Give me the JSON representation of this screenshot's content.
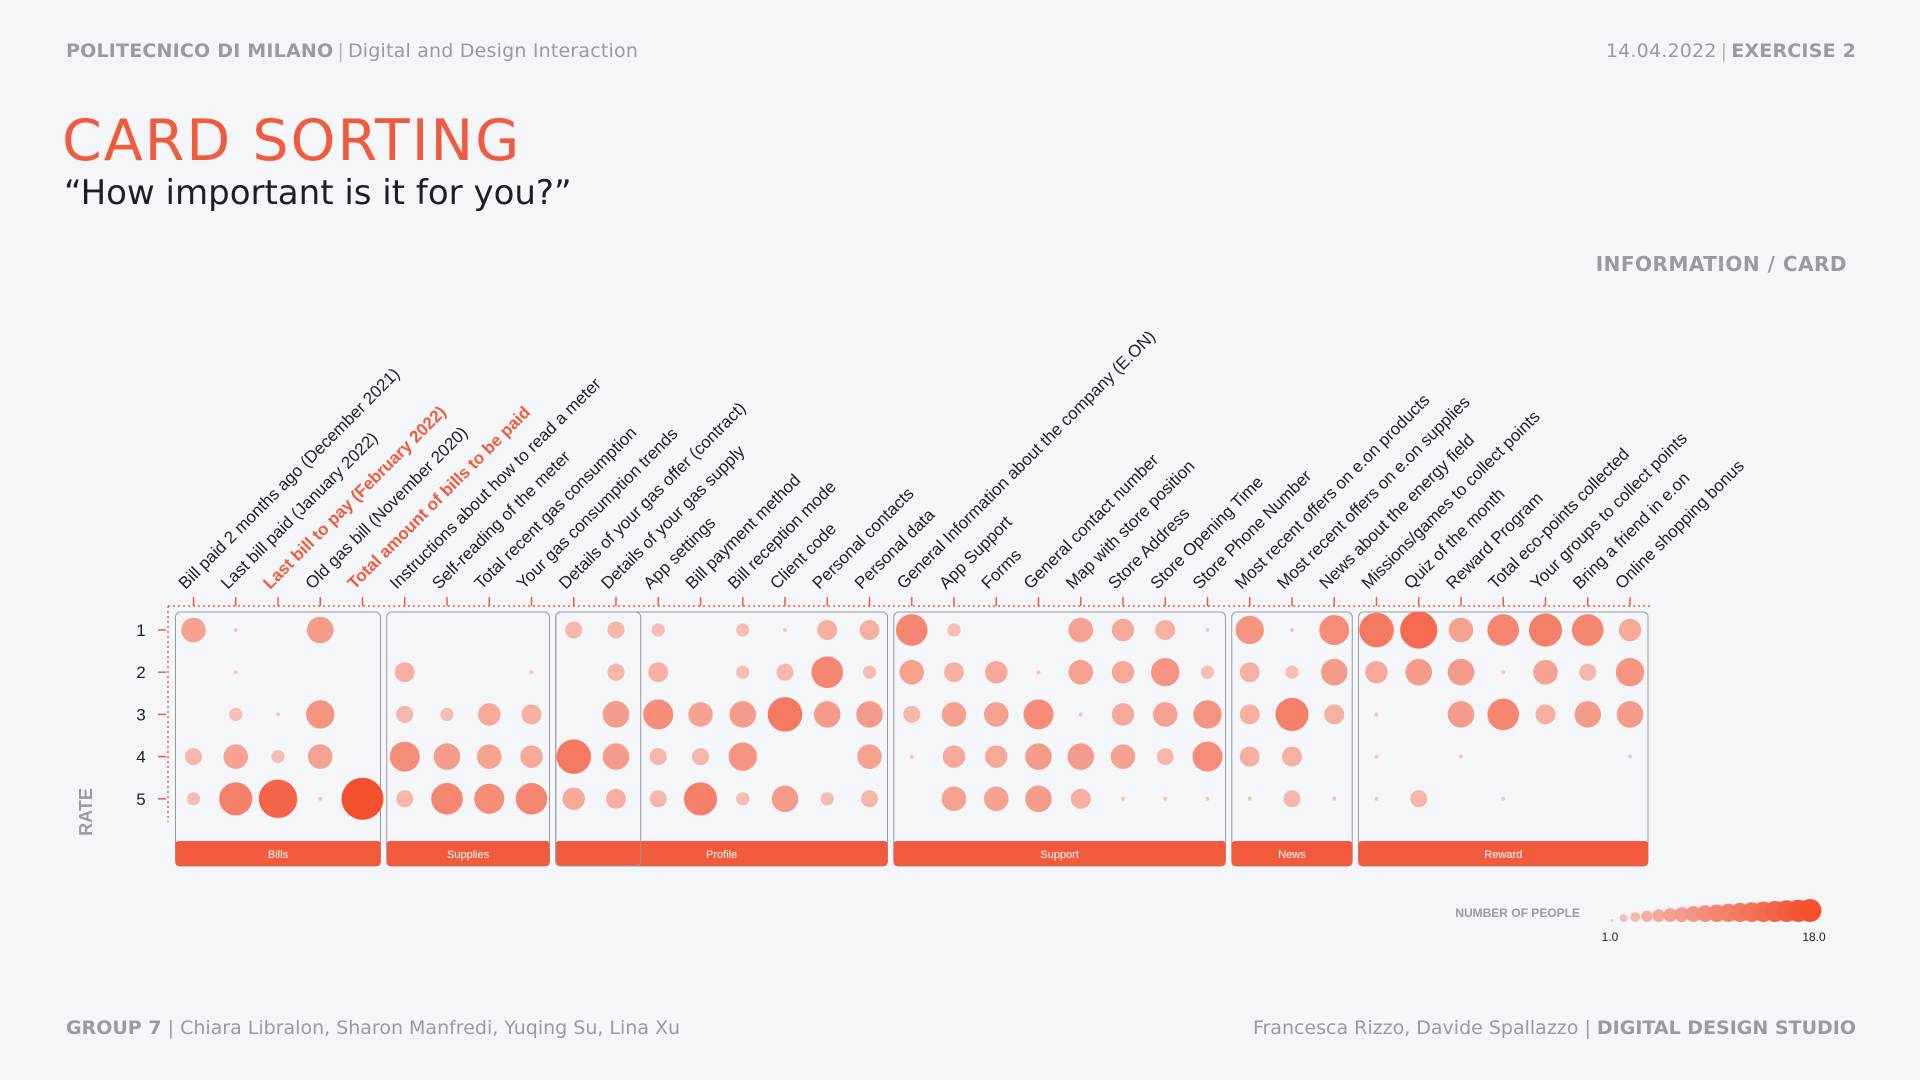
{
  "header": {
    "school": "POLITECNICO DI MILANO",
    "course": "Digital and Design Interaction",
    "date": "14.04.2022",
    "exercise": "EXERCISE 2"
  },
  "title": "CARD SORTING",
  "subtitle": "“How important is it for you?”",
  "info_card_label": "INFORMATION / CARD",
  "footer": {
    "group": "GROUP 7",
    "members": "Chiara Libralon, Sharon Manfredi, Yuqing Su, Lina Xu",
    "teachers": "Francesca Rizzo, Davide Spallazzo",
    "studio": "DIGITAL DESIGN STUDIO"
  },
  "colors": {
    "accent": "#f25a3c",
    "highlight_text": "#f25a3c",
    "bubble_light": "#f7d8d2",
    "bubble_dark": "#f35030",
    "muted": "#9a9aa2"
  },
  "chart_data": {
    "type": "scatter",
    "subtype": "bubble-matrix",
    "y_axis": {
      "label": "RATE",
      "ticks": [
        "1",
        "2",
        "3",
        "4",
        "5"
      ]
    },
    "cards": [
      "Bill paid 2 months ago (December 2021)",
      "Last bill paid (January 2022)",
      "Last bill to pay (February 2022)",
      "Old gas bill (November 2020)",
      "Total amount of bills to be paid",
      "Instructions about how to read a meter",
      "Self-reading of the meter",
      "Total recent gas consumption",
      "Your gas consumption trends",
      "Details of your gas offer (contract)",
      "Details of your gas supply",
      "App settings",
      "Bill payment method",
      "Bill reception mode",
      "Client code",
      "Personal contacts",
      "Personal data",
      "General Information about the company (E.ON)",
      "App Support",
      "Forms",
      "General contact number",
      "Map with store position",
      "Store Address",
      "Store Opening Time",
      "Store Phone Number",
      "Most recent offers on e.on products",
      "Most recent offers on e.on supplies",
      "News about the energy field",
      "Missions/games to collect points",
      "Quiz of the month",
      "Reward Program",
      "Total eco-points collected",
      "Your groups to collect points",
      "Bring a friend in e.on",
      "Online shopping bonus"
    ],
    "highlighted_cards": [
      2,
      4
    ],
    "groups": [
      {
        "name": "Bills",
        "start": 0,
        "end": 4
      },
      {
        "name": "Supplies",
        "start": 5,
        "end": 8
      },
      {
        "name": "Profile",
        "start": 9,
        "end": 16
      },
      {
        "name": "Support",
        "start": 17,
        "end": 24
      },
      {
        "name": "News",
        "start": 25,
        "end": 27
      },
      {
        "name": "Reward",
        "start": 28,
        "end": 34
      }
    ],
    "counts": [
      [
        6,
        0,
        0,
        3,
        2
      ],
      [
        1,
        1,
        2,
        6,
        11
      ],
      [
        0,
        0,
        1,
        2,
        15
      ],
      [
        7,
        0,
        8,
        6,
        1
      ],
      [
        0,
        0,
        0,
        0,
        18
      ],
      [
        0,
        4,
        3,
        9,
        3
      ],
      [
        0,
        0,
        2,
        7,
        10
      ],
      [
        0,
        0,
        5,
        6,
        9
      ],
      [
        0,
        1,
        4,
        5,
        10
      ],
      [
        3,
        0,
        0,
        12,
        5
      ],
      [
        3,
        3,
        7,
        7,
        4
      ],
      [
        2,
        4,
        9,
        3,
        3
      ],
      [
        0,
        0,
        6,
        3,
        11
      ],
      [
        2,
        2,
        7,
        8,
        2
      ],
      [
        1,
        3,
        12,
        0,
        7
      ],
      [
        4,
        10,
        7,
        0,
        2
      ],
      [
        4,
        2,
        7,
        6,
        3
      ],
      [
        10,
        6,
        3,
        1,
        0
      ],
      [
        2,
        4,
        6,
        5,
        6
      ],
      [
        0,
        5,
        6,
        5,
        6
      ],
      [
        0,
        1,
        9,
        7,
        7
      ],
      [
        6,
        6,
        1,
        7,
        4
      ],
      [
        5,
        5,
        5,
        6,
        1
      ],
      [
        4,
        8,
        6,
        3,
        1
      ],
      [
        1,
        2,
        8,
        9,
        1
      ],
      [
        8,
        4,
        4,
        4,
        1
      ],
      [
        1,
        2,
        11,
        4,
        3
      ],
      [
        9,
        7,
        4,
        0,
        1
      ],
      [
        12,
        5,
        1,
        1,
        1
      ],
      [
        14,
        7,
        0,
        0,
        3
      ],
      [
        6,
        7,
        7,
        1,
        0
      ],
      [
        10,
        1,
        10,
        0,
        1
      ],
      [
        11,
        6,
        4,
        0,
        0
      ],
      [
        10,
        3,
        7,
        0,
        0
      ],
      [
        5,
        8,
        7,
        1,
        0
      ]
    ],
    "size_legend": {
      "label": "NUMBER OF PEOPLE",
      "min": 1.0,
      "max": 18.0,
      "min_label": "1.0",
      "max_label": "18.0"
    }
  }
}
